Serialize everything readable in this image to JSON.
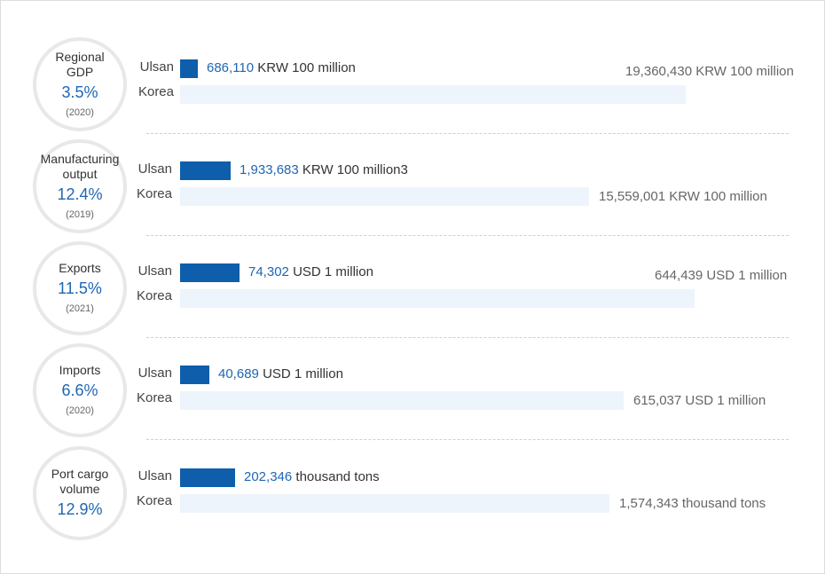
{
  "chart_data": {
    "type": "bar",
    "axis_max": 21000000,
    "metrics": [
      {
        "label": "Regional GDP",
        "share": "3.5%",
        "year": "(2020)",
        "ulsan_label": "Ulsan",
        "korea_label": "Korea",
        "ulsan_value": 686110,
        "korea_value": 19360430,
        "ulsan_display": "686,110",
        "ulsan_unit": "KRW 100 million",
        "korea_display": "19,360,430 KRW 100 million",
        "korea_label_pos": "above"
      },
      {
        "label": "Manufacturing output",
        "share": "12.4%",
        "year": "(2019)",
        "ulsan_label": "Ulsan",
        "korea_label": "Korea",
        "ulsan_value": 1933683,
        "korea_value": 15559001,
        "ulsan_display": "1,933,683",
        "ulsan_unit": "KRW 100 million3",
        "korea_display": "15,559,001 KRW 100 million",
        "korea_label_pos": "inline"
      },
      {
        "label": "Exports",
        "share": "11.5%",
        "year": "(2021)",
        "ulsan_label": "Ulsan",
        "korea_label": "Korea",
        "ulsan_value": 74302,
        "korea_value": 644439,
        "ulsan_display": "74,302",
        "ulsan_unit": "USD 1 million",
        "korea_display": "644,439 USD 1 million",
        "korea_label_pos": "above"
      },
      {
        "label": "Imports",
        "share": "6.6%",
        "year": "(2020)",
        "ulsan_label": "Ulsan",
        "korea_label": "Korea",
        "ulsan_value": 40689,
        "korea_value": 615037,
        "ulsan_display": "40,689",
        "ulsan_unit": "USD 1 million",
        "korea_display": "615,037 USD 1 million",
        "korea_label_pos": "inline"
      },
      {
        "label": "Port cargo volume",
        "share": "12.9%",
        "year": "",
        "ulsan_label": "Ulsan",
        "korea_label": "Korea",
        "ulsan_value": 202346,
        "korea_value": 1574343,
        "ulsan_display": "202,346",
        "ulsan_unit": "thousand tons",
        "korea_display": "1,574,343 thousand tons",
        "korea_label_pos": "inline"
      }
    ],
    "colors": {
      "ulsan": "#0e5eab",
      "korea": "#eef4fb",
      "accent": "#1f66b3"
    }
  }
}
